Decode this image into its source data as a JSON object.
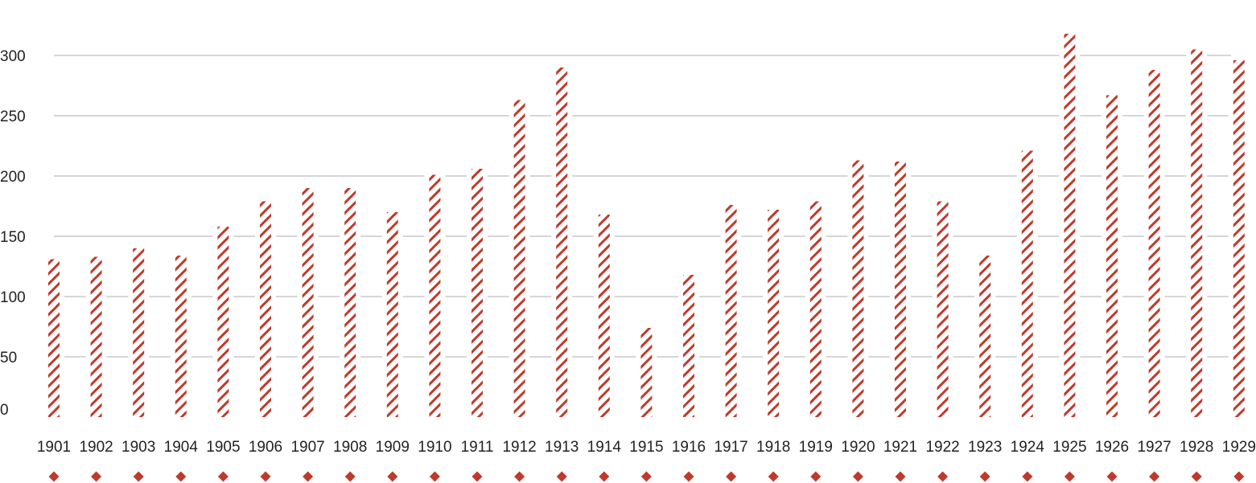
{
  "chart_data": {
    "type": "bar",
    "title": "",
    "xlabel": "",
    "ylabel": "",
    "categories": [
      "1901",
      "1902",
      "1903",
      "1904",
      "1905",
      "1906",
      "1907",
      "1908",
      "1909",
      "1910",
      "1911",
      "1912",
      "1913",
      "1914",
      "1915",
      "1916",
      "1917",
      "1918",
      "1919",
      "1920",
      "1921",
      "1922",
      "1923",
      "1924",
      "1925",
      "1926",
      "1927",
      "1928",
      "1929"
    ],
    "values": [
      131,
      133,
      140,
      134,
      158,
      179,
      190,
      190,
      170,
      201,
      206,
      263,
      290,
      168,
      74,
      118,
      176,
      172,
      179,
      213,
      212,
      179,
      134,
      221,
      318,
      267,
      288,
      305,
      296
    ],
    "yticks": [
      0,
      50,
      100,
      150,
      200,
      250,
      300
    ],
    "ylim": [
      0,
      320
    ],
    "grid": true,
    "colors": {
      "bar": "#C0392B",
      "grid": "#C8C8C8",
      "marker": "#C0392B"
    },
    "bar_fill": "diagonal-hatch",
    "marker": "diamond"
  }
}
